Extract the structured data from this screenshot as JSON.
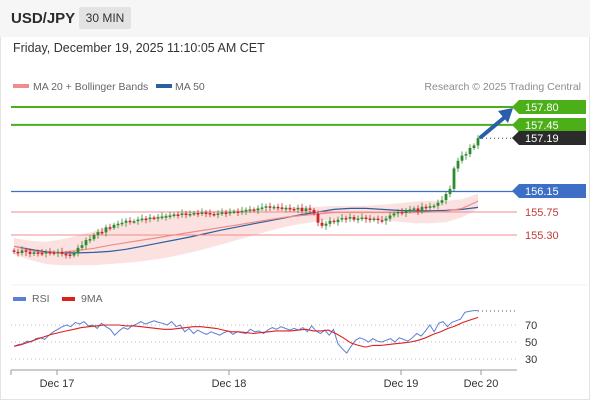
{
  "header": {
    "symbol": "USD/JPY",
    "timeframe": "30 MIN",
    "datetime": "Friday, December 19, 2025 11:10:05 AM CET"
  },
  "legend": {
    "ma20_label": "MA 20 + Bollinger Bands",
    "ma20_color": "#f08c8c",
    "ma50_label": "MA 50",
    "ma50_color": "#2c5f9e",
    "source": "Research © 2025 Trading Central"
  },
  "rsi_legend": {
    "rsi_label": "RSI",
    "rsi_color": "#5b7fd6",
    "ma_label": "9MA",
    "ma_color": "#dd1f1f"
  },
  "levels": {
    "target2": "157.80",
    "target1": "157.45",
    "last": "157.19",
    "pivot": "156.15",
    "support1": "155.75",
    "support2": "155.30"
  },
  "chart_data": [
    {
      "type": "line",
      "x_ticks": [
        "Dec 17",
        "Dec 18",
        "Dec 19",
        "Dec 20"
      ],
      "y_range": [
        154.8,
        157.9
      ],
      "colors": {
        "up": "#2e8b2e",
        "down": "#c62828",
        "resistance": "#4caf1a",
        "pivot": "#3d6fc6",
        "support": "#f08c8c",
        "band": "#fbdcdc",
        "arrow": "#2a5ea8"
      },
      "series": [
        {
          "values": [
            154.97,
            154.95,
            155.0,
            154.97,
            154.93,
            154.96,
            154.95,
            154.94,
            154.97,
            154.96,
            154.94,
            154.97,
            154.93,
            154.92,
            154.9,
            154.95,
            155.05,
            155.1,
            155.2,
            155.22,
            155.3,
            155.36,
            155.35,
            155.45,
            155.44,
            155.5,
            155.52,
            155.54,
            155.58,
            155.56,
            155.57,
            155.6,
            155.62,
            155.61,
            155.64,
            155.63,
            155.65,
            155.66,
            155.67,
            155.68,
            155.7,
            155.69,
            155.72,
            155.71,
            155.71,
            155.73,
            155.72,
            155.74,
            155.73,
            155.71,
            155.7,
            155.72,
            155.74,
            155.73,
            155.75,
            155.76,
            155.74,
            155.77,
            155.79,
            155.8,
            155.78,
            155.82,
            155.84,
            155.86,
            155.83,
            155.85,
            155.84,
            155.82,
            155.83,
            155.81,
            155.8,
            155.83,
            155.77,
            155.82,
            155.79,
            155.72,
            155.54,
            155.48,
            155.52,
            155.58,
            155.55,
            155.6,
            155.63,
            155.62,
            155.65,
            155.6,
            155.62,
            155.64,
            155.62,
            155.6,
            155.62,
            155.59,
            155.58,
            155.62,
            155.68,
            155.72,
            155.75,
            155.73,
            155.78,
            155.8,
            155.82,
            155.76,
            155.85,
            155.84,
            155.86,
            155.87,
            155.93,
            155.98,
            156.1,
            156.2,
            156.6,
            156.75,
            156.85,
            156.88,
            157.0,
            157.05,
            157.19
          ]
        },
        {
          "values": [
            155.08,
            155.0,
            154.95,
            154.96,
            155.0,
            155.04,
            155.1,
            155.15,
            155.2,
            155.25,
            155.3,
            155.35,
            155.4,
            155.45,
            155.5,
            155.55,
            155.6,
            155.65,
            155.68,
            155.71,
            155.74,
            155.74,
            155.74,
            155.74,
            155.74,
            155.74,
            155.75,
            155.76,
            155.82,
            155.96
          ]
        },
        {
          "values": [
            155.08,
            155.02,
            154.97,
            154.95,
            154.95,
            154.96,
            154.98,
            155.02,
            155.08,
            155.14,
            155.2,
            155.26,
            155.33,
            155.4,
            155.46,
            155.52,
            155.58,
            155.64,
            155.7,
            155.75,
            155.8,
            155.82,
            155.82,
            155.8,
            155.78,
            155.77,
            155.77,
            155.78,
            155.8,
            155.84
          ]
        }
      ]
    },
    {
      "type": "line",
      "y_ticks": [
        "70",
        "50",
        "30"
      ],
      "series": [
        {
          "name": "RSI",
          "values": [
            45,
            47,
            48,
            51,
            50,
            54,
            55,
            53,
            58,
            62,
            65,
            68,
            70,
            68,
            73,
            71,
            74,
            69,
            70,
            66,
            72,
            68,
            65,
            58,
            63,
            67,
            65,
            69,
            71,
            74,
            71,
            73,
            75,
            73,
            72,
            70,
            74,
            68,
            70,
            62,
            66,
            60,
            64,
            61,
            59,
            62,
            60,
            58,
            61,
            63,
            59,
            62,
            61,
            60,
            65,
            62,
            63,
            60,
            64,
            67,
            65,
            68,
            66,
            64,
            66,
            64,
            67,
            62,
            69,
            63,
            60,
            64,
            58,
            65,
            48,
            42,
            37,
            45,
            52,
            55,
            53,
            50,
            54,
            51,
            50,
            52,
            54,
            50,
            55,
            53,
            51,
            55,
            60,
            57,
            63,
            70,
            62,
            72,
            74,
            68,
            73,
            75,
            77,
            85,
            86,
            87,
            87
          ]
        },
        {
          "name": "9MA",
          "values": [
            45,
            47,
            50,
            53,
            56,
            59,
            61,
            63,
            65,
            67,
            68,
            69,
            70,
            70,
            70,
            69,
            69,
            68,
            67,
            66,
            65,
            65,
            66,
            67,
            68,
            68,
            67,
            66,
            64,
            62,
            62,
            61,
            60,
            61,
            62,
            63,
            63,
            63,
            64,
            65,
            63,
            63,
            64,
            60,
            55,
            49,
            46,
            44,
            46,
            46,
            47,
            48,
            49,
            50,
            52,
            55,
            59,
            62,
            66,
            69,
            73,
            76,
            79
          ]
        }
      ]
    }
  ]
}
